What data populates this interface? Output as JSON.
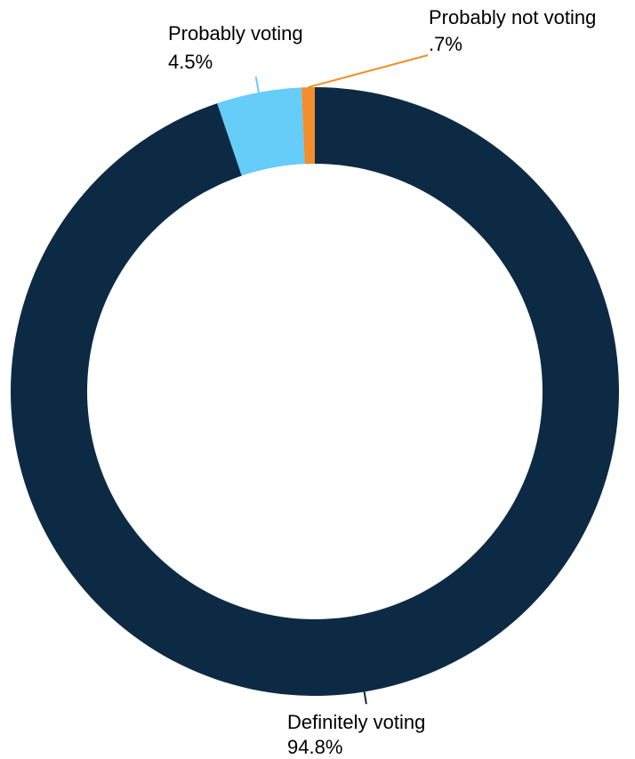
{
  "chart_data": {
    "type": "pie",
    "donut": true,
    "title": "",
    "slices": [
      {
        "label": "Definitely voting",
        "value": 94.8,
        "value_label": "94.8%",
        "color": "#0d2a45"
      },
      {
        "label": "Probably voting",
        "value": 4.5,
        "value_label": "4.5%",
        "color": "#66ccf8"
      },
      {
        "label": "Probably not voting",
        "value": 0.7,
        "value_label": ".7%",
        "color": "#f28e2b"
      }
    ]
  }
}
